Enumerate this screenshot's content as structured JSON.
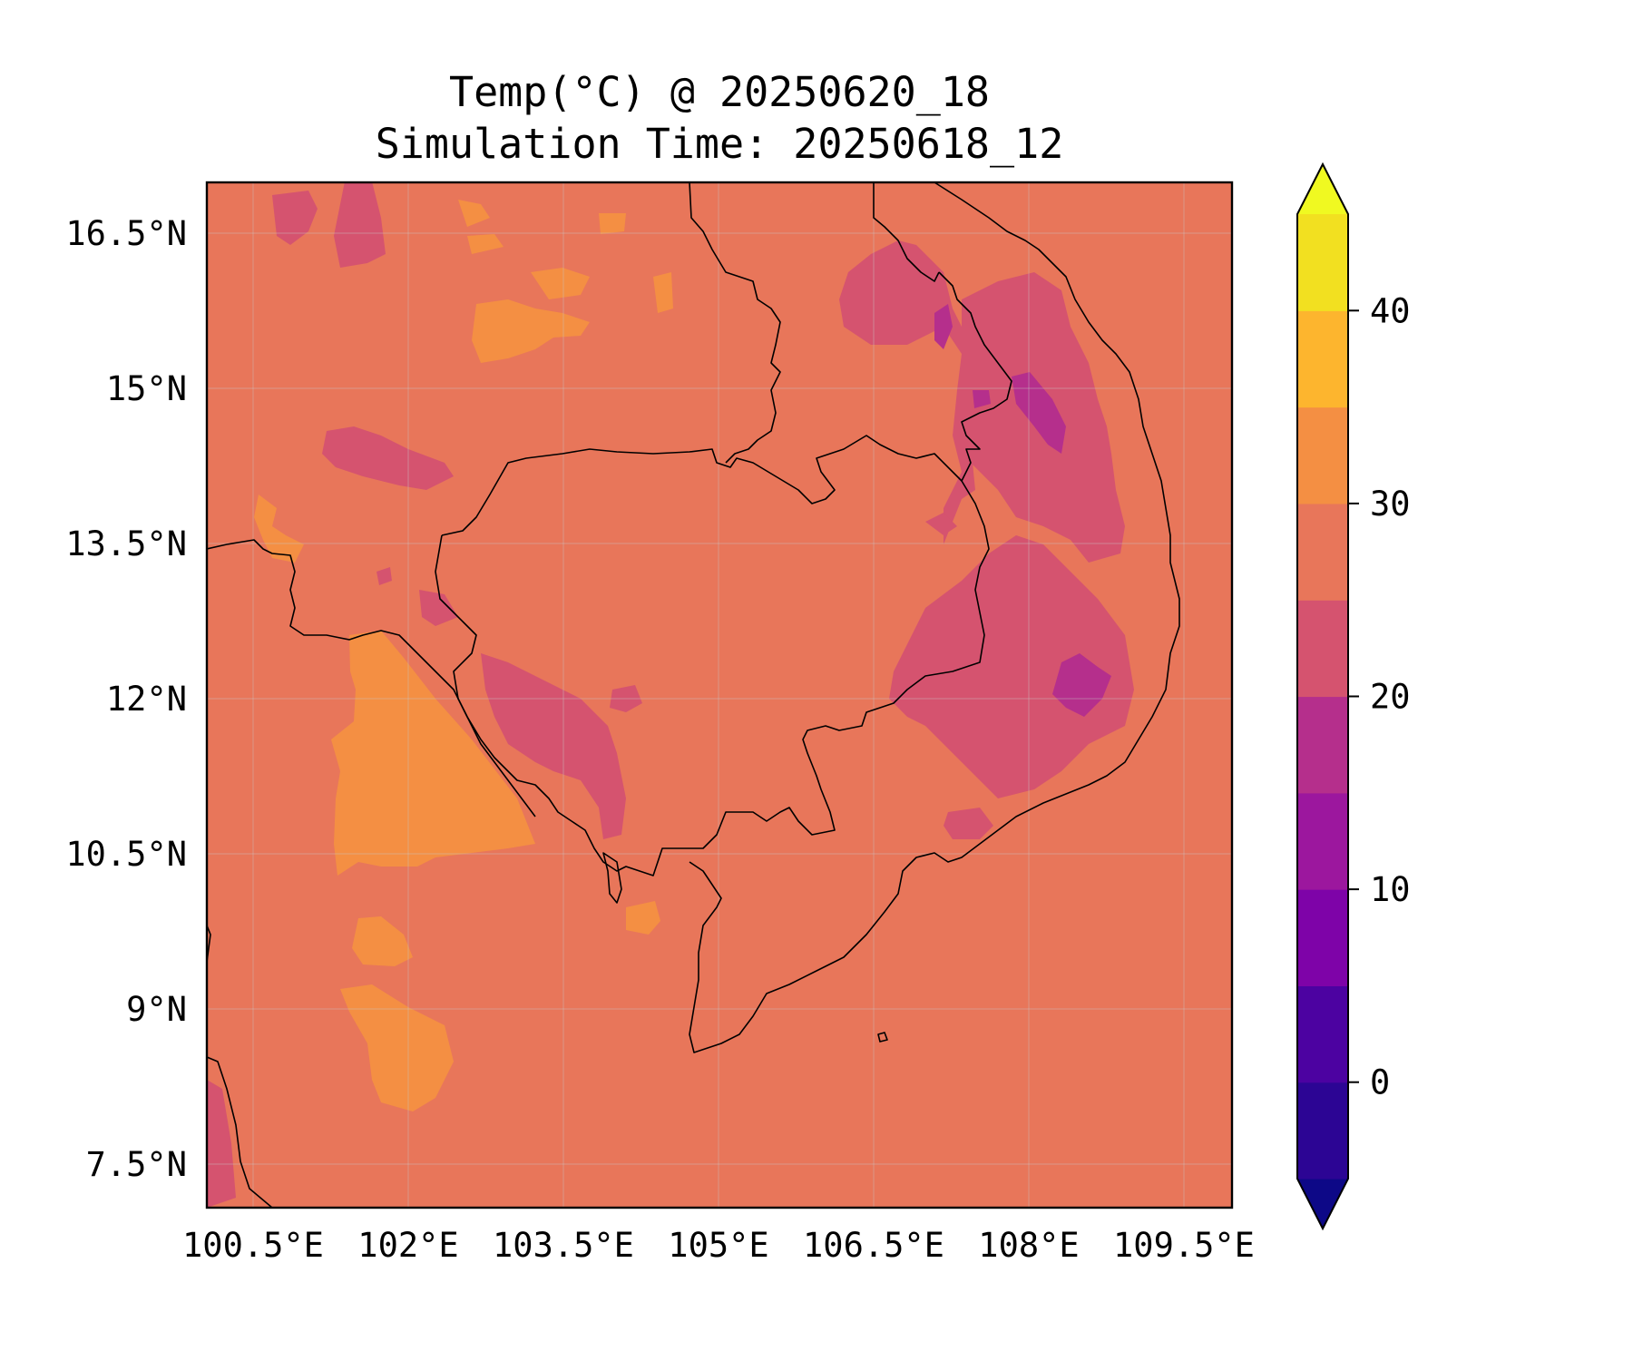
{
  "title": {
    "line1": "Temp(°C) @ 20250620_18",
    "line2": "Simulation Time: 20250618_12"
  },
  "map": {
    "lon_range": [
      100.2,
      110.1
    ],
    "lat_range": [
      7.1,
      17.0
    ],
    "lon_ticks": [
      "100.5°E",
      "102°E",
      "103.5°E",
      "105°E",
      "106.5°E",
      "108°E",
      "109.5°E"
    ],
    "lat_ticks": [
      "16.5°N",
      "15°N",
      "13.5°N",
      "12°N",
      "10.5°N",
      "9°N",
      "7.5°N"
    ],
    "gridlines": true,
    "background_color": "#e8765a"
  },
  "colorbar": {
    "min": -5,
    "max": 45,
    "step": 5,
    "extend": "both",
    "tick_values": [
      0,
      10,
      20,
      30,
      40
    ],
    "tick_labels": [
      "0",
      "10",
      "20",
      "30",
      "40"
    ],
    "colors": [
      "#0d0887",
      "#2c0594",
      "#4c02a1",
      "#7e03a8",
      "#9c179e",
      "#b52f8c",
      "#d5536f",
      "#e8765a",
      "#f48f43",
      "#fdb52e",
      "#f2e020",
      "#f0f921"
    ]
  }
}
